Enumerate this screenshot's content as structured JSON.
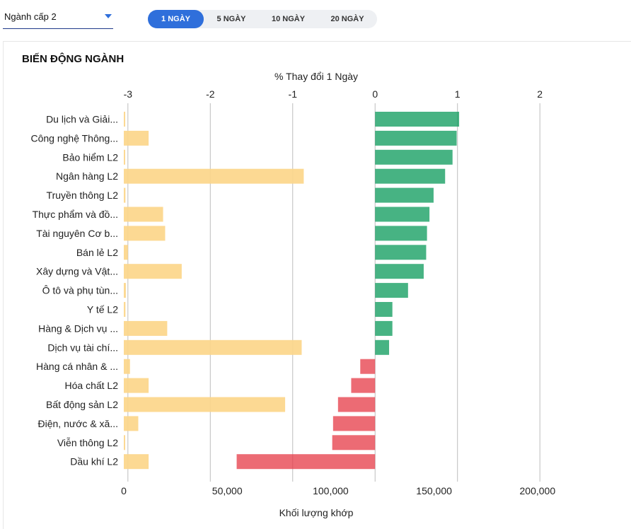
{
  "filter": {
    "label": "Ngành cấp 2",
    "icon": "caret-down-icon"
  },
  "periods": [
    {
      "label": "1 NGÀY",
      "active": true
    },
    {
      "label": "5 NGÀY",
      "active": false
    },
    {
      "label": "10 NGÀY",
      "active": false
    },
    {
      "label": "20 NGÀY",
      "active": false
    }
  ],
  "card": {
    "title": "BIẾN ĐỘNG NGÀNH"
  },
  "chart_data": {
    "type": "bar",
    "orientation": "horizontal",
    "categories": [
      "Du lịch và Giải...",
      "Công nghệ Thông...",
      "Bảo hiểm L2",
      "Ngân hàng L2",
      "Truyền thông L2",
      "Thực phẩm và đồ...",
      "Tài nguyên Cơ b...",
      "Bán lẻ L2",
      "Xây dựng và Vật...",
      "Ô tô và phụ tùn...",
      "Y tế L2",
      "Hàng & Dịch vụ ...",
      "Dịch vụ tài chí...",
      "Hàng cá nhân & ...",
      "Hóa chất L2",
      "Bất động sản L2",
      "Điện, nước & xă...",
      "Viễn thông L2",
      "Dầu khí L2"
    ],
    "series": [
      {
        "axis": "top",
        "color": "#0a9a5a",
        "negative_color": "#e63946",
        "values": [
          1.02,
          0.99,
          0.94,
          0.85,
          0.71,
          0.66,
          0.63,
          0.62,
          0.59,
          0.4,
          0.21,
          0.21,
          0.17,
          -0.18,
          -0.29,
          -0.45,
          -0.51,
          -0.52,
          -1.68
        ]
      },
      {
        "axis": "bottom",
        "color": "#fcd68a",
        "values": [
          700,
          12000,
          600,
          87000,
          800,
          19000,
          20000,
          2000,
          28000,
          1000,
          800,
          21000,
          86000,
          3000,
          12000,
          78000,
          7000,
          400,
          12000
        ]
      }
    ],
    "top_axis": {
      "title": "% Thay đổi 1 Ngày",
      "ticks": [
        -3,
        -2,
        -1,
        0,
        1,
        2
      ],
      "range": [
        -3.05,
        2.9
      ]
    },
    "bottom_axis": {
      "title": "Khối lượng khớp",
      "ticks": [
        "0",
        "50,000",
        "100,000",
        "150,000",
        "200,000"
      ],
      "tick_values": [
        0,
        50000,
        100000,
        150000,
        200000
      ],
      "range": [
        0,
        237000
      ]
    },
    "grid": true
  }
}
